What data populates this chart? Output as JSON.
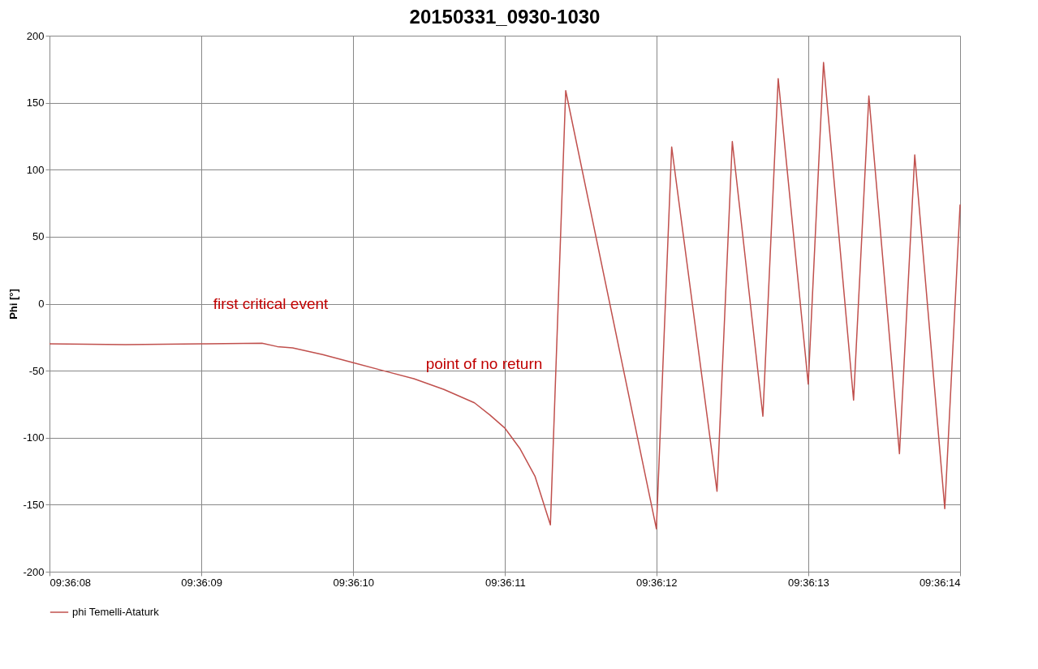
{
  "chart_data": {
    "type": "line",
    "title": "20150331_0930-1030",
    "ylabel": "Phi [°]",
    "x": [
      9.602222,
      9.602361,
      9.6025,
      9.602611,
      9.602639,
      9.602667,
      9.602722,
      9.602778,
      9.602833,
      9.602889,
      9.602944,
      9.603,
      9.603028,
      9.603056,
      9.603083,
      9.603111,
      9.603139,
      9.603167,
      9.603333,
      9.603361,
      9.603444,
      9.603472,
      9.603528,
      9.603556,
      9.603611,
      9.603639,
      9.603694,
      9.603722,
      9.603778,
      9.603806,
      9.603861,
      9.603889
    ],
    "series": [
      {
        "name": "phi Temelli-Ataturk",
        "color": "#c0504d",
        "values": [
          -30,
          -30.5,
          -30,
          -29.5,
          -32,
          -33,
          -38,
          -44,
          -50,
          -56,
          -64,
          -74,
          -83,
          -93,
          -108,
          -129,
          -165,
          159,
          -168,
          117,
          -140,
          121,
          -84,
          168,
          -60,
          180,
          -72,
          155,
          -112,
          111,
          -153,
          74
        ]
      }
    ],
    "xlim": [
      9.602222,
      9.603889
    ],
    "xticks": [
      {
        "value": 9.602222,
        "label": "09:36:08"
      },
      {
        "value": 9.6025,
        "label": "09:36:09"
      },
      {
        "value": 9.602778,
        "label": "09:36:10"
      },
      {
        "value": 9.603056,
        "label": "09:36:11"
      },
      {
        "value": 9.603333,
        "label": "09:36:12"
      },
      {
        "value": 9.603611,
        "label": "09:36:13"
      },
      {
        "value": 9.603889,
        "label": "09:36:14"
      }
    ],
    "ylim": [
      -200,
      200
    ],
    "yticks": [
      -200,
      -150,
      -100,
      -50,
      0,
      50,
      100,
      150,
      200
    ],
    "annotations": [
      {
        "text": "first  critical event",
        "x": 9.602611,
        "y": -29.5
      },
      {
        "text": "point of no return",
        "x": 9.603,
        "y": -74
      }
    ],
    "grid": true,
    "legend": "bottom",
    "marker": "none",
    "line_style": "solid"
  }
}
